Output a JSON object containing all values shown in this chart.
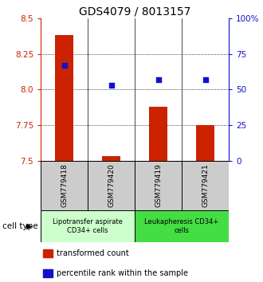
{
  "title": "GDS4079 / 8013157",
  "samples": [
    "GSM779418",
    "GSM779420",
    "GSM779419",
    "GSM779421"
  ],
  "transformed_counts": [
    8.38,
    7.53,
    7.88,
    7.75
  ],
  "percentile_ranks": [
    67,
    53,
    57,
    57
  ],
  "y_min": 7.5,
  "y_max": 8.5,
  "y_ticks": [
    7.5,
    7.75,
    8.0,
    8.25,
    8.5
  ],
  "y_ticks_right": [
    0,
    25,
    50,
    75,
    100
  ],
  "y_ticks_right_labels": [
    "0",
    "25",
    "50",
    "75",
    "100%"
  ],
  "bar_color": "#cc2200",
  "dot_color": "#1111cc",
  "cell_types": [
    {
      "label": "Lipotransfer aspirate\nCD34+ cells",
      "color": "#ccffcc",
      "span": [
        0,
        2
      ]
    },
    {
      "label": "Leukapheresis CD34+\ncells",
      "color": "#44dd44",
      "span": [
        2,
        4
      ]
    }
  ],
  "cell_type_label": "cell type",
  "legend_entries": [
    {
      "color": "#cc2200",
      "label": "transformed count"
    },
    {
      "color": "#1111cc",
      "label": "percentile rank within the sample"
    }
  ],
  "bar_bottom": 7.5,
  "title_fontsize": 10,
  "tick_fontsize": 7.5,
  "sample_fontsize": 6.5,
  "cell_type_fontsize": 6,
  "legend_fontsize": 7
}
